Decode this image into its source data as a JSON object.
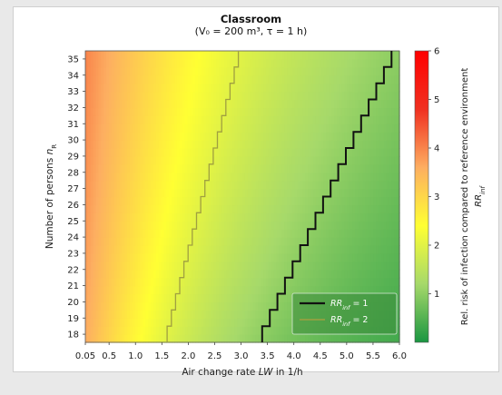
{
  "chart_data": {
    "type": "heatmap",
    "title": "Classroom",
    "subtitle": "(V₀ = 200 m³, τ = 1 h)",
    "xlabel_prefix": "Air change rate ",
    "xlabel_var": "LW",
    "xlabel_suffix": " in 1/h",
    "ylabel_prefix": "Number of persons ",
    "ylabel_var": "n",
    "ylabel_sub": "R",
    "colorbar_label": "Rel. risk of infection compared to reference environment",
    "colorbar_symbol": "RR",
    "colorbar_symbol_sub": "inf",
    "xlim": [
      0.05,
      6.0
    ],
    "ylim": [
      17.5,
      35.5
    ],
    "x_tick_values": [
      0.05,
      0.5,
      1.0,
      1.5,
      2.0,
      2.5,
      3.0,
      3.5,
      4.0,
      4.5,
      5.0,
      5.5,
      6.0
    ],
    "x_tick_labels": [
      "0.05",
      "0.5",
      "1.0",
      "1.5",
      "2.0",
      "2.5",
      "3.0",
      "3.5",
      "4.0",
      "4.5",
      "5.0",
      "5.5",
      "6.0"
    ],
    "y_ticks": [
      18,
      19,
      20,
      21,
      22,
      23,
      24,
      25,
      26,
      27,
      28,
      29,
      30,
      31,
      32,
      33,
      34,
      35
    ],
    "colorbar_range": [
      0,
      6
    ],
    "colorbar_ticks": [
      1,
      2,
      3,
      4,
      5,
      6
    ],
    "colormap": [
      "#1a9641",
      "#a6d96a",
      "#ffff33",
      "#fdae61",
      "#f03020",
      "#ff0000"
    ],
    "series": [
      {
        "name": "RR_inf = 1",
        "label_base": "RR",
        "label_sub": "inf",
        "label_value": "= 1",
        "color": "#111111",
        "x_at_n": {
          "18": 3.4,
          "35": 5.85
        }
      },
      {
        "name": "RR_inf = 2",
        "label_base": "RR",
        "label_sub": "inf",
        "label_value": "= 2",
        "color": "#a0a040",
        "x_at_n": {
          "18": 1.6,
          "35": 2.95
        }
      }
    ]
  }
}
